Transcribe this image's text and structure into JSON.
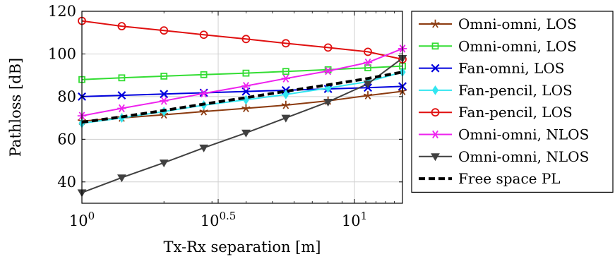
{
  "chart_data": {
    "type": "line",
    "xlabel": "Tx-Rx separation [m]",
    "ylabel": "Pathloss [dB]",
    "x_scale": "log10",
    "xlim": [
      1,
      15
    ],
    "ylim": [
      30,
      120
    ],
    "x_ticks": [
      {
        "value": 1,
        "base": "10",
        "exp": "0"
      },
      {
        "value": 3.1623,
        "base": "10",
        "exp": "0.5"
      },
      {
        "value": 10,
        "base": "10",
        "exp": "1"
      }
    ],
    "y_ticks": [
      {
        "value": 40,
        "label": "40"
      },
      {
        "value": 60,
        "label": "60"
      },
      {
        "value": 80,
        "label": "80"
      },
      {
        "value": 100,
        "label": "100"
      },
      {
        "value": 120,
        "label": "120"
      }
    ],
    "grid": true,
    "legend_position": "right-outside",
    "x": [
      1,
      1.4,
      2,
      2.8,
      4,
      5.6,
      8,
      11.2,
      15
    ],
    "series": [
      {
        "name": "Omni-omni, LOS",
        "color": "#8B3A0F",
        "marker": "star",
        "dashed": false,
        "values": [
          68.5,
          70,
          71.5,
          73,
          74.5,
          76,
          78,
          80.5,
          82.5
        ]
      },
      {
        "name": "Omni-omni, LOS",
        "color": "#33DD33",
        "marker": "square",
        "dashed": false,
        "values": [
          88,
          88.8,
          89.6,
          90.3,
          91,
          91.8,
          92.6,
          93.5,
          94.3
        ]
      },
      {
        "name": "Fan-omni, LOS",
        "color": "#0000DD",
        "marker": "x",
        "dashed": false,
        "values": [
          80,
          80.6,
          81.2,
          81.8,
          82.4,
          83,
          83.6,
          84.2,
          84.8
        ]
      },
      {
        "name": "Fan-pencil, LOS",
        "color": "#33E6F0",
        "marker": "diamond",
        "dashed": false,
        "values": [
          67.5,
          70,
          73,
          76,
          78.5,
          81,
          84,
          87,
          91.5
        ]
      },
      {
        "name": "Fan-pencil, LOS",
        "color": "#E01010",
        "marker": "circle",
        "dashed": false,
        "values": [
          115.5,
          113,
          111,
          109,
          107,
          105,
          103,
          101,
          97.5
        ]
      },
      {
        "name": "Omni-omni, NLOS",
        "color": "#EE22EE",
        "marker": "asterisk",
        "dashed": false,
        "values": [
          71,
          74.5,
          78,
          81.5,
          85,
          88.5,
          92,
          96,
          102.5
        ]
      },
      {
        "name": "Omni-omni, NLOS",
        "color": "#404040",
        "marker": "triangle-down",
        "dashed": false,
        "values": [
          35,
          42,
          49,
          56,
          63,
          70,
          77.5,
          86,
          98
        ]
      },
      {
        "name": "Free space PL",
        "color": "#000000",
        "marker": "none",
        "dashed": true,
        "values": [
          68,
          70.5,
          73.5,
          76.5,
          79.5,
          82.5,
          85.5,
          88.5,
          91.5
        ]
      }
    ]
  }
}
